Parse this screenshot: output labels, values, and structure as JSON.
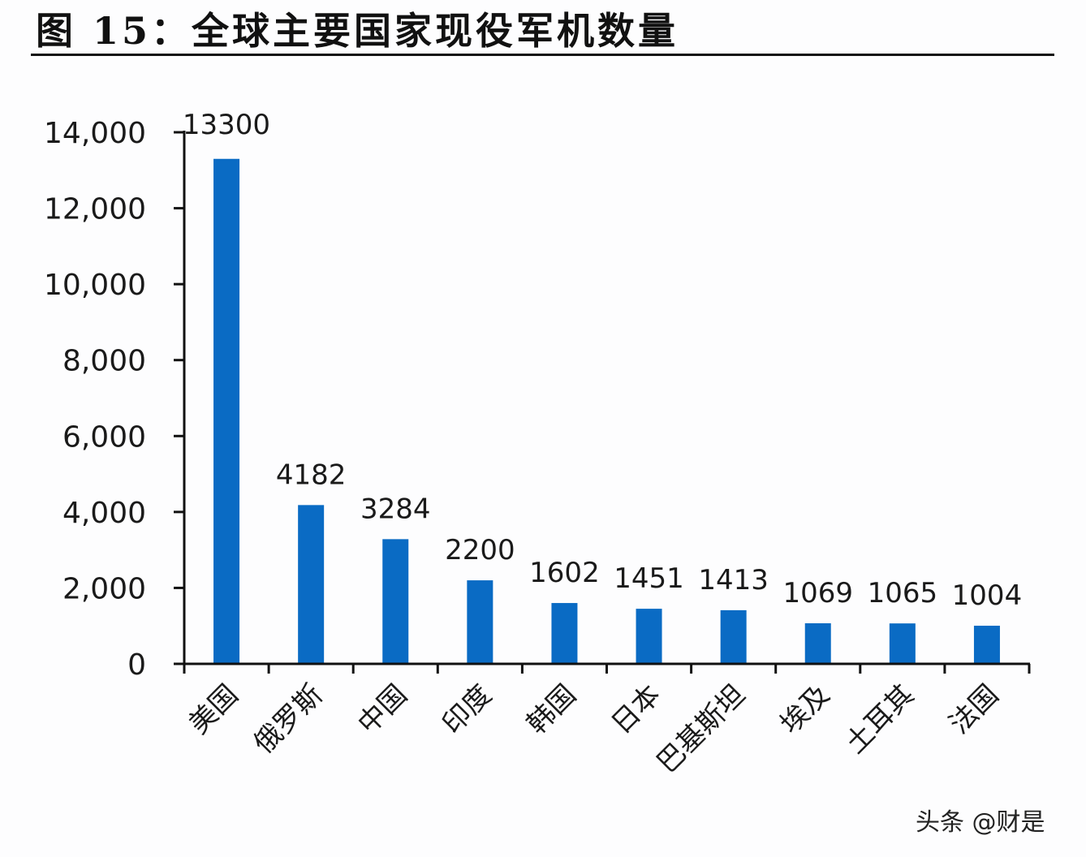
{
  "header": {
    "title": "图 15：全球主要国家现役军机数量"
  },
  "watermark": {
    "text": "头条 @财是"
  },
  "colors": {
    "bar": "#0A6BC4",
    "axis": "#111111",
    "text": "#1a1a1a"
  },
  "chart_data": {
    "type": "bar",
    "title": "全球主要国家现役军机数量",
    "xlabel": "",
    "ylabel": "",
    "categories": [
      "美国",
      "俄罗斯",
      "中国",
      "印度",
      "韩国",
      "日本",
      "巴基斯坦",
      "埃及",
      "土耳其",
      "法国"
    ],
    "values": [
      13300,
      4182,
      3284,
      2200,
      1602,
      1451,
      1413,
      1069,
      1065,
      1004
    ],
    "data_labels": [
      "13300",
      "4182",
      "3284",
      "2200",
      "1602",
      "1451",
      "1413",
      "1069",
      "1065",
      "1004"
    ],
    "ylim": [
      0,
      14000
    ],
    "yticks": [
      0,
      2000,
      4000,
      6000,
      8000,
      10000,
      12000,
      14000
    ],
    "ytick_labels": [
      "0",
      "2,000",
      "4,000",
      "6,000",
      "8,000",
      "10,000",
      "12,000",
      "14,000"
    ],
    "grid": false,
    "legend": null
  }
}
